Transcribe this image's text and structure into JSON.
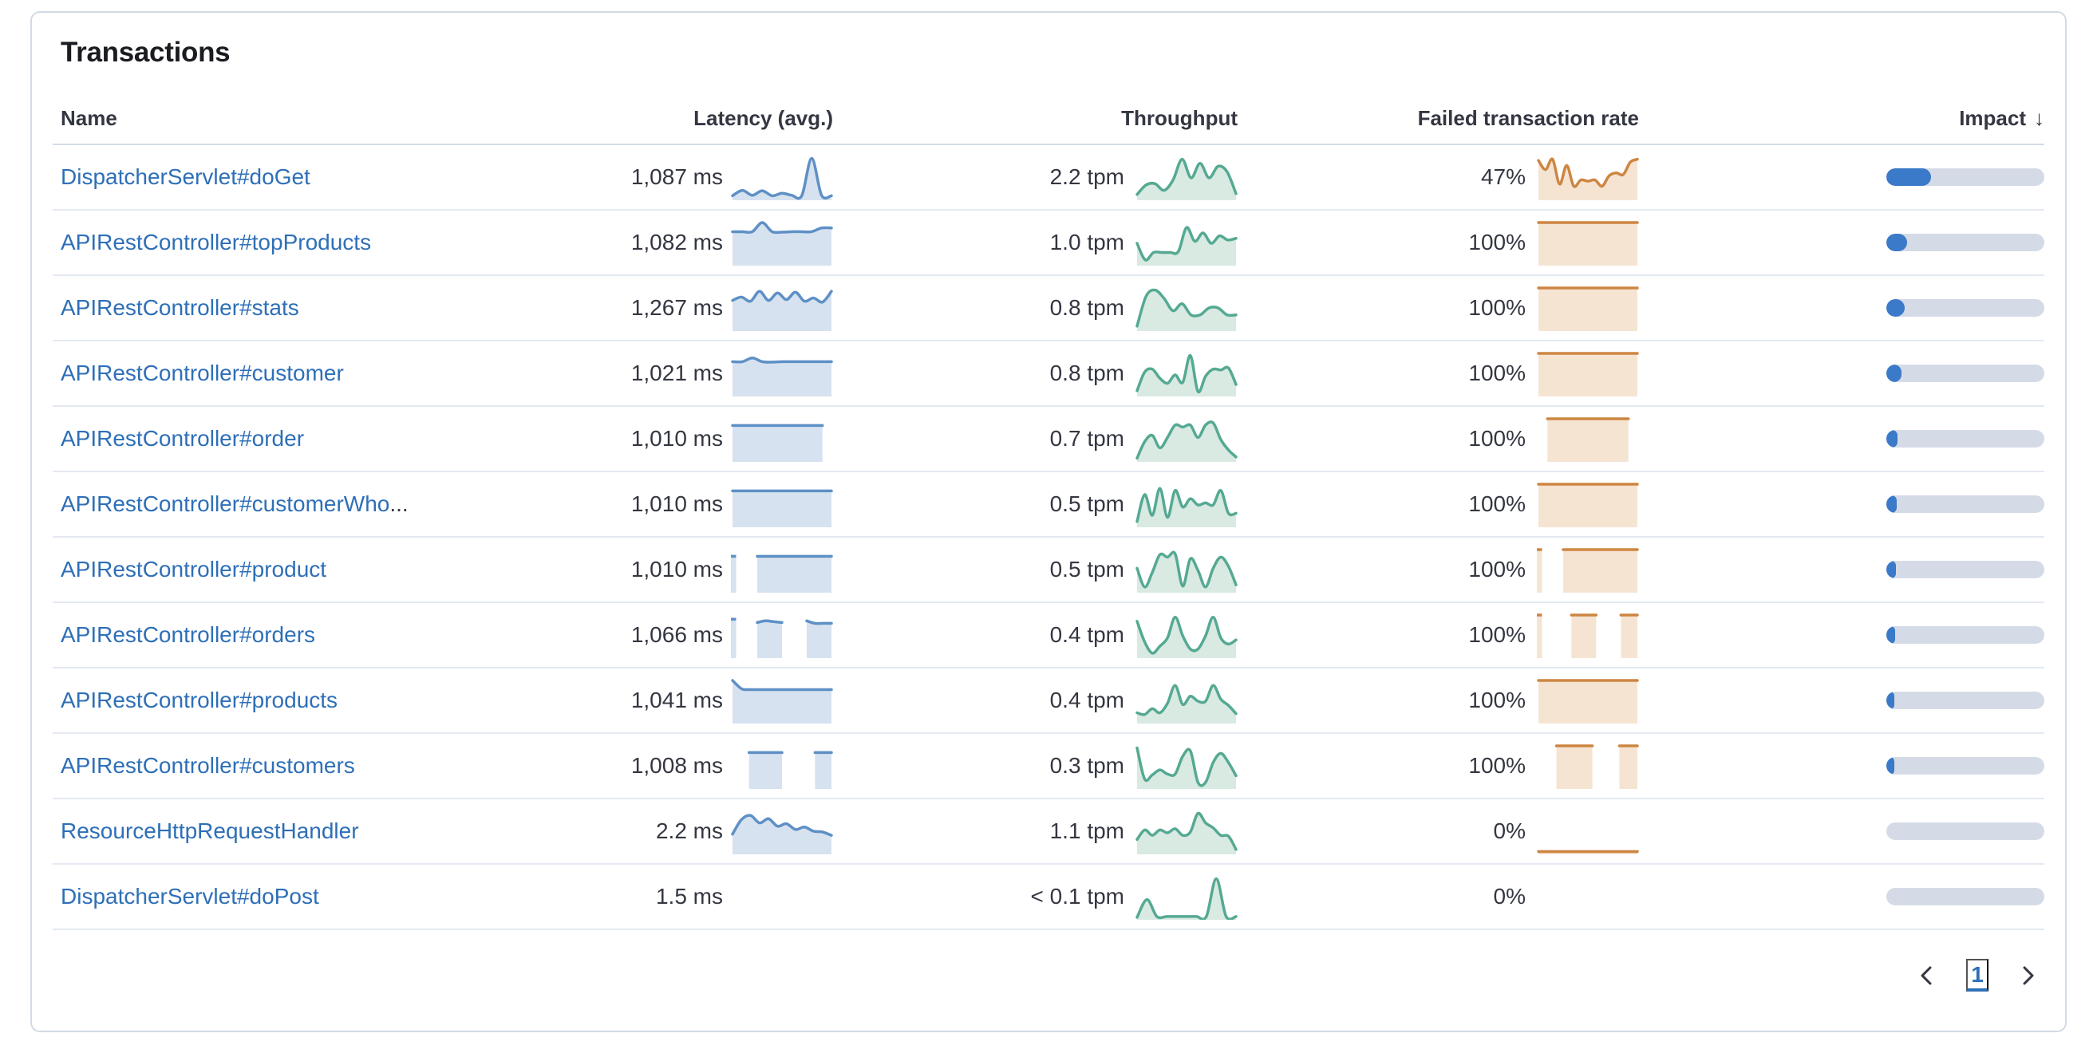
{
  "panel": {
    "title": "Transactions"
  },
  "table": {
    "headers": {
      "name": "Name",
      "latency": "Latency (avg.)",
      "throughput": "Throughput",
      "failed": "Failed transaction rate",
      "impact": "Impact",
      "impact_sort_icon": "arrow-down",
      "impact_sort_glyph": "↓"
    },
    "rows": [
      {
        "name": "DispatcherServlet#doGet",
        "latency": "1,087 ms",
        "throughput": "2.2 tpm",
        "failed_rate": "47%",
        "impact_pct": 28.5,
        "latency_spark": [
          0.07,
          0.2,
          0.08,
          0.19,
          0.07,
          0.13,
          0.08,
          0.07,
          0.97,
          0.08,
          0.07
        ],
        "throughput_spark": [
          0.1,
          0.33,
          0.36,
          0.2,
          0.45,
          0.95,
          0.5,
          0.85,
          0.5,
          0.78,
          0.65,
          0.12
        ],
        "failed_spark": [
          0.92,
          0.7,
          0.95,
          0.35,
          0.8,
          0.3,
          0.45,
          0.42,
          0.45,
          0.3,
          0.55,
          0.62,
          0.58,
          0.88,
          0.95
        ]
      },
      {
        "name": "APIRestController#topProducts",
        "latency": "1,082 ms",
        "throughput": "1.0 tpm",
        "failed_rate": "100%",
        "impact_pct": 13,
        "latency_spark": [
          0.78,
          0.78,
          0.78,
          1.0,
          0.78,
          0.77,
          0.78,
          0.78,
          0.78,
          0.87,
          0.87
        ],
        "throughput_spark": [
          0.5,
          0.1,
          0.28,
          0.28,
          0.28,
          0.3,
          0.88,
          0.55,
          0.75,
          0.5,
          0.68,
          0.58,
          0.62
        ],
        "failed_spark": [
          1,
          1,
          1,
          1,
          1,
          1,
          1,
          1,
          1,
          1,
          1,
          1
        ]
      },
      {
        "name": "APIRestController#stats",
        "latency": "1,267 ms",
        "throughput": "0.8 tpm",
        "failed_rate": "100%",
        "impact_pct": 11.7,
        "latency_spark": [
          0.7,
          0.78,
          0.68,
          0.92,
          0.7,
          0.88,
          0.72,
          0.9,
          0.68,
          0.76,
          0.66,
          0.92
        ],
        "throughput_spark": [
          0.08,
          0.8,
          0.95,
          0.75,
          0.45,
          0.62,
          0.35,
          0.35,
          0.52,
          0.52,
          0.35,
          0.35
        ],
        "failed_spark": [
          1,
          1,
          1,
          1,
          1,
          1,
          1,
          1,
          1,
          1,
          1,
          1
        ]
      },
      {
        "name": "APIRestController#customer",
        "latency": "1,021 ms",
        "throughput": "0.8 tpm",
        "failed_rate": "100%",
        "impact_pct": 9.5,
        "latency_spark": [
          0.8,
          0.8,
          0.89,
          0.8,
          0.79,
          0.8,
          0.8,
          0.8,
          0.8,
          0.8,
          0.8
        ],
        "throughput_spark": [
          0.1,
          0.55,
          0.62,
          0.4,
          0.28,
          0.48,
          0.3,
          0.95,
          0.08,
          0.45,
          0.62,
          0.6,
          0.65,
          0.25
        ],
        "failed_spark": [
          1,
          1,
          1,
          1,
          1,
          1,
          1,
          1,
          1,
          1,
          1,
          1
        ]
      },
      {
        "name": "APIRestController#order",
        "latency": "1,010 ms",
        "throughput": "0.7 tpm",
        "failed_rate": "100%",
        "impact_pct": 7.2,
        "latency_spark": [
          0.84,
          0.84,
          0.84,
          0.84,
          0.84,
          0.84,
          0.84,
          0.84,
          0.84,
          0.84,
          0.84,
          null
        ],
        "throughput_spark": [
          0.05,
          0.45,
          0.6,
          0.3,
          0.55,
          0.85,
          0.8,
          0.85,
          0.55,
          0.85,
          0.9,
          0.5,
          0.25,
          0.08
        ],
        "failed_spark": [
          null,
          1,
          1,
          1,
          1,
          1,
          1,
          1,
          1,
          1,
          1,
          null
        ]
      },
      {
        "name": "APIRestController#customerWho",
        "name_ellipsis": "...",
        "latency": "1,010 ms",
        "throughput": "0.5 tpm",
        "failed_rate": "100%",
        "impact_pct": 6.5,
        "latency_spark": [
          0.84,
          0.84,
          0.84,
          0.84,
          0.84,
          0.84,
          0.84,
          0.84,
          0.84,
          0.84,
          0.84,
          0.84
        ],
        "throughput_spark": [
          0.1,
          0.75,
          0.25,
          0.9,
          0.2,
          0.85,
          0.45,
          0.65,
          0.5,
          0.55,
          0.5,
          0.85,
          0.3,
          0.3
        ],
        "failed_spark": [
          1,
          1,
          1,
          1,
          1,
          1,
          1,
          1,
          1,
          1,
          1,
          1
        ]
      },
      {
        "name": "APIRestController#product",
        "latency": "1,010 ms",
        "throughput": "0.5 tpm",
        "failed_rate": "100%",
        "impact_pct": 6,
        "latency_spark": [
          0.84,
          null,
          null,
          0.84,
          0.84,
          0.84,
          0.84,
          0.84,
          0.84,
          0.84,
          0.84,
          0.84,
          0.84
        ],
        "throughput_spark": [
          0.55,
          0.1,
          0.45,
          0.88,
          0.82,
          0.9,
          0.12,
          0.78,
          0.5,
          0.1,
          0.55,
          0.82,
          0.6,
          0.15
        ],
        "failed_spark": [
          1,
          null,
          null,
          1,
          1,
          1,
          1,
          1,
          1,
          1,
          1,
          1,
          1
        ]
      },
      {
        "name": "APIRestController#orders",
        "latency": "1,066 ms",
        "throughput": "0.4 tpm",
        "failed_rate": "100%",
        "impact_pct": 5.6,
        "latency_spark": [
          0.9,
          null,
          null,
          0.82,
          0.86,
          0.84,
          0.82,
          null,
          null,
          0.86,
          0.8,
          0.8,
          0.8
        ],
        "throughput_spark": [
          0.85,
          0.35,
          0.08,
          0.25,
          0.45,
          0.95,
          0.5,
          0.18,
          0.18,
          0.5,
          0.95,
          0.45,
          0.3,
          0.4
        ],
        "failed_spark": [
          1,
          null,
          null,
          null,
          1,
          1,
          1,
          1,
          null,
          null,
          1,
          1,
          1
        ]
      },
      {
        "name": "APIRestController#products",
        "latency": "1,041 ms",
        "throughput": "0.4 tpm",
        "failed_rate": "100%",
        "impact_pct": 5.3,
        "latency_spark": [
          1.0,
          0.8,
          0.78,
          0.78,
          0.78,
          0.78,
          0.78,
          0.78,
          0.78,
          0.78,
          0.78,
          0.78
        ],
        "throughput_spark": [
          0.22,
          0.18,
          0.32,
          0.22,
          0.45,
          0.88,
          0.42,
          0.62,
          0.5,
          0.5,
          0.88,
          0.55,
          0.4,
          0.2
        ],
        "failed_spark": [
          1,
          1,
          1,
          1,
          1,
          1,
          1,
          1,
          1,
          1,
          1,
          1
        ]
      },
      {
        "name": "APIRestController#customers",
        "latency": "1,008 ms",
        "throughput": "0.3 tpm",
        "failed_rate": "100%",
        "impact_pct": 5,
        "latency_spark": [
          null,
          null,
          0.84,
          0.84,
          0.84,
          0.84,
          0.84,
          null,
          null,
          null,
          0.84,
          0.84,
          0.84
        ],
        "throughput_spark": [
          0.95,
          0.2,
          0.3,
          0.42,
          0.32,
          0.32,
          0.75,
          0.88,
          0.12,
          0.12,
          0.6,
          0.82,
          0.6,
          0.28
        ],
        "failed_spark": [
          null,
          null,
          1,
          1,
          1,
          1,
          1,
          null,
          null,
          1,
          1,
          1
        ]
      },
      {
        "name": "ResourceHttpRequestHandler",
        "latency": "2.2 ms",
        "throughput": "1.1 tpm",
        "failed_rate": "0%",
        "impact_pct": 0,
        "latency_spark": [
          0.45,
          0.8,
          0.9,
          0.72,
          0.82,
          0.64,
          0.7,
          0.56,
          0.62,
          0.52,
          0.5,
          0.42
        ],
        "throughput_spark": [
          0.32,
          0.55,
          0.42,
          0.55,
          0.48,
          0.58,
          0.42,
          0.5,
          0.95,
          0.72,
          0.6,
          0.42,
          0.4,
          0.08
        ],
        "failed_spark": [
          0.03,
          0.03,
          0.03,
          0.03,
          0.03,
          0.03,
          0.03,
          0.03,
          0.03,
          0.03,
          0.03,
          0.03
        ]
      },
      {
        "name": "DispatcherServlet#doPost",
        "latency": "1.5 ms",
        "throughput": "< 0.1 tpm",
        "failed_rate": "0%",
        "impact_pct": 0,
        "latency_spark": null,
        "throughput_spark": [
          0.02,
          0.45,
          0.04,
          0.04,
          0.04,
          0.04,
          0.04,
          0.04,
          0.95,
          0.04,
          0.04
        ],
        "failed_spark": null
      }
    ]
  },
  "pagination": {
    "page": "1",
    "prev_icon": "chevron-left",
    "next_icon": "chevron-right"
  },
  "colors": {
    "latency_line": "#5e90c5",
    "latency_fill": "#d7e2f0",
    "throughput_line": "#55a992",
    "throughput_fill": "#d8eae2",
    "failed_line": "#cd8642",
    "failed_fill": "#f6e4d3",
    "impact_fill": "#3b79c9",
    "impact_track": "#d5dbe6",
    "link": "#2e6fb7"
  }
}
